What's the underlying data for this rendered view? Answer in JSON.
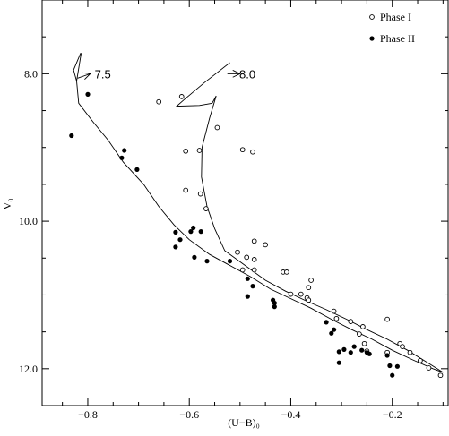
{
  "chart_data": {
    "type": "scatter",
    "xlabel": "(U−B)₀",
    "ylabel": "V₀",
    "xlim": [
      -0.89,
      -0.09
    ],
    "ylim": [
      12.5,
      7.0
    ],
    "y_inverted": true,
    "x_ticks": [
      {
        "value": -0.8,
        "label": "−0.8"
      },
      {
        "value": -0.6,
        "label": "−0.6"
      },
      {
        "value": -0.4,
        "label": "−0.4"
      },
      {
        "value": -0.2,
        "label": "−0.2"
      }
    ],
    "y_ticks": [
      {
        "value": 8.0,
        "label": "8.0"
      },
      {
        "value": 10.0,
        "label": "10.0"
      },
      {
        "value": 12.0,
        "label": "12.0"
      }
    ],
    "grid": false,
    "legend_position": "top-right",
    "legend": [
      {
        "label": "Phase I",
        "marker": "open-circle"
      },
      {
        "label": "Phase II",
        "marker": "filled-circle"
      }
    ],
    "series": [
      {
        "name": "Phase I",
        "marker": "open-circle",
        "points": [
          [
            -0.66,
            8.38
          ],
          [
            -0.615,
            8.31
          ],
          [
            -0.545,
            8.73
          ],
          [
            -0.607,
            9.05
          ],
          [
            -0.58,
            9.04
          ],
          [
            -0.495,
            9.03
          ],
          [
            -0.475,
            9.06
          ],
          [
            -0.607,
            9.58
          ],
          [
            -0.578,
            9.63
          ],
          [
            -0.567,
            9.83
          ],
          [
            -0.472,
            10.27
          ],
          [
            -0.45,
            10.32
          ],
          [
            -0.505,
            10.42
          ],
          [
            -0.487,
            10.49
          ],
          [
            -0.472,
            10.52
          ],
          [
            -0.495,
            10.66
          ],
          [
            -0.472,
            10.66
          ],
          [
            -0.415,
            10.69
          ],
          [
            -0.408,
            10.69
          ],
          [
            -0.36,
            10.8
          ],
          [
            -0.365,
            10.9
          ],
          [
            -0.4,
            10.99
          ],
          [
            -0.38,
            10.99
          ],
          [
            -0.368,
            11.04
          ],
          [
            -0.365,
            11.07
          ],
          [
            -0.315,
            11.22
          ],
          [
            -0.31,
            11.32
          ],
          [
            -0.282,
            11.36
          ],
          [
            -0.258,
            11.43
          ],
          [
            -0.21,
            11.33
          ],
          [
            -0.265,
            11.53
          ],
          [
            -0.255,
            11.66
          ],
          [
            -0.25,
            11.76
          ],
          [
            -0.185,
            11.66
          ],
          [
            -0.21,
            11.78
          ],
          [
            -0.165,
            11.78
          ],
          [
            -0.145,
            11.89
          ],
          [
            -0.128,
            11.99
          ],
          [
            -0.105,
            12.09
          ],
          [
            -0.18,
            11.7
          ]
        ]
      },
      {
        "name": "Phase II",
        "marker": "filled-circle",
        "points": [
          [
            -0.8,
            8.28
          ],
          [
            -0.832,
            8.84
          ],
          [
            -0.728,
            9.04
          ],
          [
            -0.733,
            9.14
          ],
          [
            -0.703,
            9.3
          ],
          [
            -0.592,
            10.09
          ],
          [
            -0.597,
            10.14
          ],
          [
            -0.577,
            10.14
          ],
          [
            -0.627,
            10.15
          ],
          [
            -0.618,
            10.25
          ],
          [
            -0.627,
            10.35
          ],
          [
            -0.59,
            10.49
          ],
          [
            -0.565,
            10.54
          ],
          [
            -0.52,
            10.54
          ],
          [
            -0.485,
            10.78
          ],
          [
            -0.475,
            10.88
          ],
          [
            -0.485,
            11.02
          ],
          [
            -0.435,
            11.07
          ],
          [
            -0.432,
            11.11
          ],
          [
            -0.432,
            11.16
          ],
          [
            -0.33,
            11.37
          ],
          [
            -0.315,
            11.47
          ],
          [
            -0.32,
            11.52
          ],
          [
            -0.305,
            11.77
          ],
          [
            -0.295,
            11.74
          ],
          [
            -0.282,
            11.78
          ],
          [
            -0.275,
            11.7
          ],
          [
            -0.26,
            11.75
          ],
          [
            -0.25,
            11.78
          ],
          [
            -0.245,
            11.8
          ],
          [
            -0.305,
            11.92
          ],
          [
            -0.21,
            11.82
          ],
          [
            -0.205,
            11.96
          ],
          [
            -0.19,
            11.97
          ],
          [
            -0.2,
            12.09
          ]
        ]
      },
      {
        "name": "",
        "type": "line",
        "points": [
          [
            -0.814,
            7.72
          ],
          [
            -0.828,
            7.95
          ],
          [
            -0.822,
            8.1
          ],
          [
            -0.818,
            8.4
          ],
          [
            -0.79,
            8.65
          ],
          [
            -0.76,
            8.9
          ],
          [
            -0.73,
            9.2
          ],
          [
            -0.69,
            9.5
          ],
          [
            -0.66,
            9.8
          ],
          [
            -0.63,
            10.05
          ],
          [
            -0.6,
            10.25
          ],
          [
            -0.56,
            10.45
          ],
          [
            -0.52,
            10.6
          ],
          [
            -0.48,
            10.75
          ],
          [
            -0.44,
            10.92
          ],
          [
            -0.4,
            11.05
          ],
          [
            -0.36,
            11.18
          ],
          [
            -0.32,
            11.33
          ],
          [
            -0.28,
            11.47
          ],
          [
            -0.24,
            11.6
          ],
          [
            -0.2,
            11.75
          ],
          [
            -0.16,
            11.88
          ],
          [
            -0.12,
            12.0
          ],
          [
            -0.1,
            12.05
          ]
        ]
      },
      {
        "name": "",
        "type": "line",
        "points": [
          [
            -0.813,
            7.72
          ],
          [
            -0.822,
            8.1
          ]
        ]
      },
      {
        "name": "",
        "type": "line",
        "points": [
          [
            -0.52,
            7.85
          ],
          [
            -0.57,
            8.12
          ],
          [
            -0.61,
            8.35
          ],
          [
            -0.625,
            8.44
          ],
          [
            -0.58,
            8.43
          ],
          [
            -0.555,
            8.4
          ],
          [
            -0.547,
            8.3
          ],
          [
            -0.56,
            8.6
          ],
          [
            -0.575,
            9.0
          ],
          [
            -0.576,
            9.4
          ],
          [
            -0.565,
            9.8
          ],
          [
            -0.55,
            10.1
          ],
          [
            -0.53,
            10.4
          ],
          [
            -0.49,
            10.6
          ],
          [
            -0.45,
            10.8
          ],
          [
            -0.41,
            10.95
          ],
          [
            -0.37,
            11.08
          ],
          [
            -0.33,
            11.2
          ],
          [
            -0.29,
            11.33
          ],
          [
            -0.25,
            11.47
          ],
          [
            -0.21,
            11.6
          ],
          [
            -0.17,
            11.75
          ],
          [
            -0.13,
            11.92
          ],
          [
            -0.1,
            12.05
          ]
        ]
      }
    ],
    "annotations": [
      {
        "text": "7.5",
        "x": -0.79,
        "y": 8.0
      },
      {
        "text": "8.0",
        "x": -0.505,
        "y": 8.0
      }
    ],
    "arrows": [
      {
        "from": [
          -0.82,
          8.06
        ],
        "to": [
          -0.795,
          8.0
        ]
      },
      {
        "from": [
          -0.525,
          8.0
        ],
        "to": [
          -0.5,
          8.0
        ]
      }
    ]
  }
}
